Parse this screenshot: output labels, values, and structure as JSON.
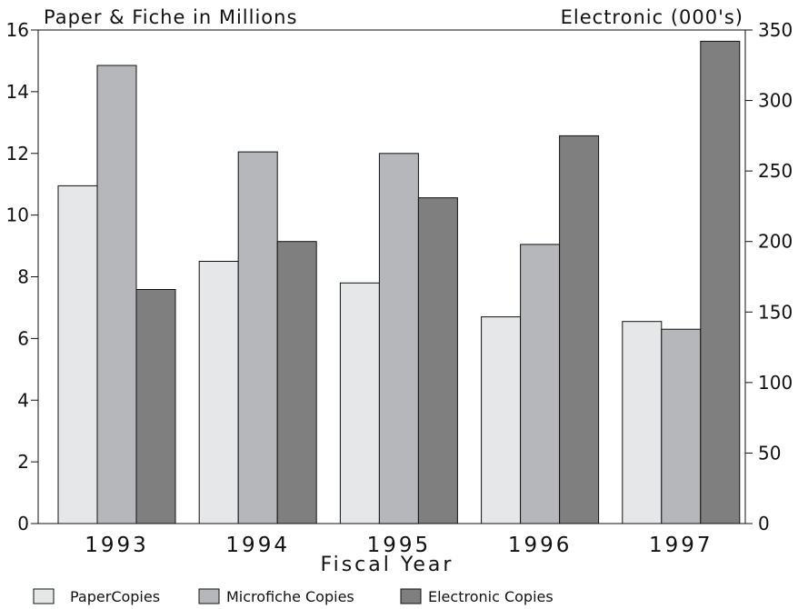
{
  "chart_data": {
    "type": "bar",
    "categories": [
      "1993",
      "1994",
      "1995",
      "1996",
      "1997"
    ],
    "xlabel": "Fiscal Year",
    "ylabel_left": "Paper & Fiche in Millions",
    "ylabel_right": "Electronic (000's)",
    "ylim_left": [
      0,
      16
    ],
    "ylim_right": [
      0,
      350
    ],
    "yticks_left": [
      0,
      2,
      4,
      6,
      8,
      10,
      12,
      14,
      16
    ],
    "yticks_right": [
      0,
      50,
      100,
      150,
      200,
      250,
      300,
      350
    ],
    "grid": false,
    "legend_position": "bottom-left",
    "series": [
      {
        "name": "PaperCopies",
        "axis": "left",
        "color": "#e6e7e9",
        "values": [
          10.95,
          8.5,
          7.8,
          6.7,
          6.55
        ]
      },
      {
        "name": "Microfiche Copies",
        "axis": "left",
        "color": "#b6b7bb",
        "values": [
          14.85,
          12.05,
          12.0,
          9.05,
          6.3
        ]
      },
      {
        "name": "Electronic Copies",
        "axis": "right",
        "color": "#7f7f7f",
        "values": [
          166,
          200,
          231,
          275,
          342
        ]
      }
    ]
  }
}
